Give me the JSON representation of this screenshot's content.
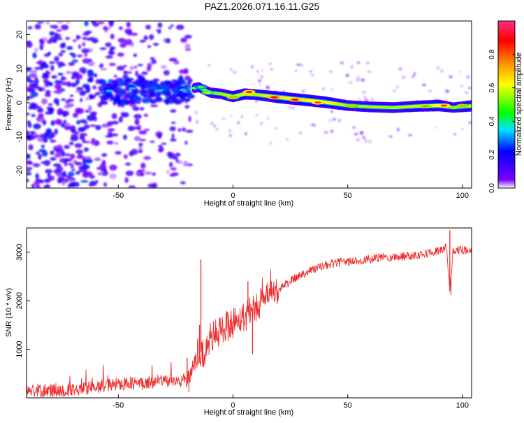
{
  "title": "PAZ1.2026.071.16.11.G25",
  "colors": {
    "trace": "#ee2a2a",
    "axis": "#000000",
    "colorbar": [
      "#ffffff",
      "#7b00ff",
      "#0000ff",
      "#00e5ff",
      "#00ff00",
      "#ffff00",
      "#ff8c00",
      "#ff0000",
      "#ff2e7e"
    ]
  },
  "chart_data": [
    {
      "type": "heatmap",
      "name": "spectrogram",
      "xlabel": "Height of straight line (km)",
      "ylabel": "Frequency (Hz)",
      "xlim": [
        -90,
        104
      ],
      "ylim": [
        -25,
        24
      ],
      "xticks": [
        -50,
        0,
        50,
        100
      ],
      "yticks": [
        -20,
        -10,
        0,
        10,
        20
      ],
      "colorbar": {
        "label": "Normalized spectral amplitude",
        "range": [
          0,
          1
        ],
        "ticks": [
          "0.0",
          "0.2",
          "0.4",
          "0.6",
          "0.8"
        ],
        "tick_values": [
          0,
          0.2,
          0.4,
          0.6,
          0.8
        ]
      },
      "ridge": {
        "note": "dominant frequency track (Hz) vs height (km)",
        "x": [
          -57,
          -50,
          -40,
          -30,
          -22,
          -15,
          -10,
          -5,
          0,
          5,
          10,
          20,
          30,
          40,
          50,
          60,
          70,
          80,
          90,
          96,
          104
        ],
        "y": [
          3.4,
          3.0,
          4.0,
          3.6,
          3.6,
          4.6,
          3.0,
          2.6,
          1.8,
          2.6,
          2.4,
          1.6,
          0.9,
          0.2,
          -0.8,
          -1.2,
          -1.4,
          -1.0,
          -0.8,
          -1.4,
          -0.9
        ],
        "amp": [
          0.35,
          0.32,
          0.3,
          0.3,
          0.3,
          0.4,
          0.45,
          0.5,
          0.7,
          0.7,
          0.55,
          0.85,
          0.85,
          0.8,
          0.55,
          0.55,
          0.55,
          0.65,
          0.8,
          0.45,
          0.7
        ]
      }
    },
    {
      "type": "line",
      "name": "snr",
      "xlabel": "Height of straight line (km)",
      "ylabel": "SNR (10 * v/v)",
      "xlim": [
        -90,
        104
      ],
      "ylim": [
        0,
        3500
      ],
      "xticks": [
        -50,
        0,
        50,
        100
      ],
      "yticks": [
        1000,
        2000,
        3000
      ],
      "series": [
        {
          "name": "SNR",
          "x": [
            -90,
            -80,
            -70,
            -60,
            -50,
            -40,
            -30,
            -25,
            -21,
            -19,
            -17,
            -15,
            -13,
            -10,
            -5,
            0,
            5,
            10,
            15,
            20,
            25,
            30,
            35,
            40,
            45,
            50,
            55,
            60,
            65,
            70,
            75,
            80,
            85,
            90,
            93,
            94.5,
            96,
            100,
            104
          ],
          "y": [
            150,
            150,
            170,
            220,
            290,
            300,
            350,
            320,
            380,
            250,
            800,
            1000,
            900,
            1200,
            1400,
            1550,
            1700,
            1900,
            2050,
            2250,
            2400,
            2550,
            2650,
            2720,
            2780,
            2800,
            2830,
            2850,
            2900,
            2900,
            2920,
            2950,
            2980,
            3030,
            3100,
            2200,
            3050,
            3050,
            3050
          ]
        }
      ],
      "spikes": [
        {
          "x": -20,
          "y": 820
        },
        {
          "x": -14,
          "y": 2850
        },
        {
          "x": -14.6,
          "y": 1500
        },
        {
          "x": 6.5,
          "y": 2400
        },
        {
          "x": 8.5,
          "y": 900
        },
        {
          "x": 94.5,
          "y": 3450
        },
        {
          "x": 95,
          "y": 2120
        }
      ]
    }
  ]
}
